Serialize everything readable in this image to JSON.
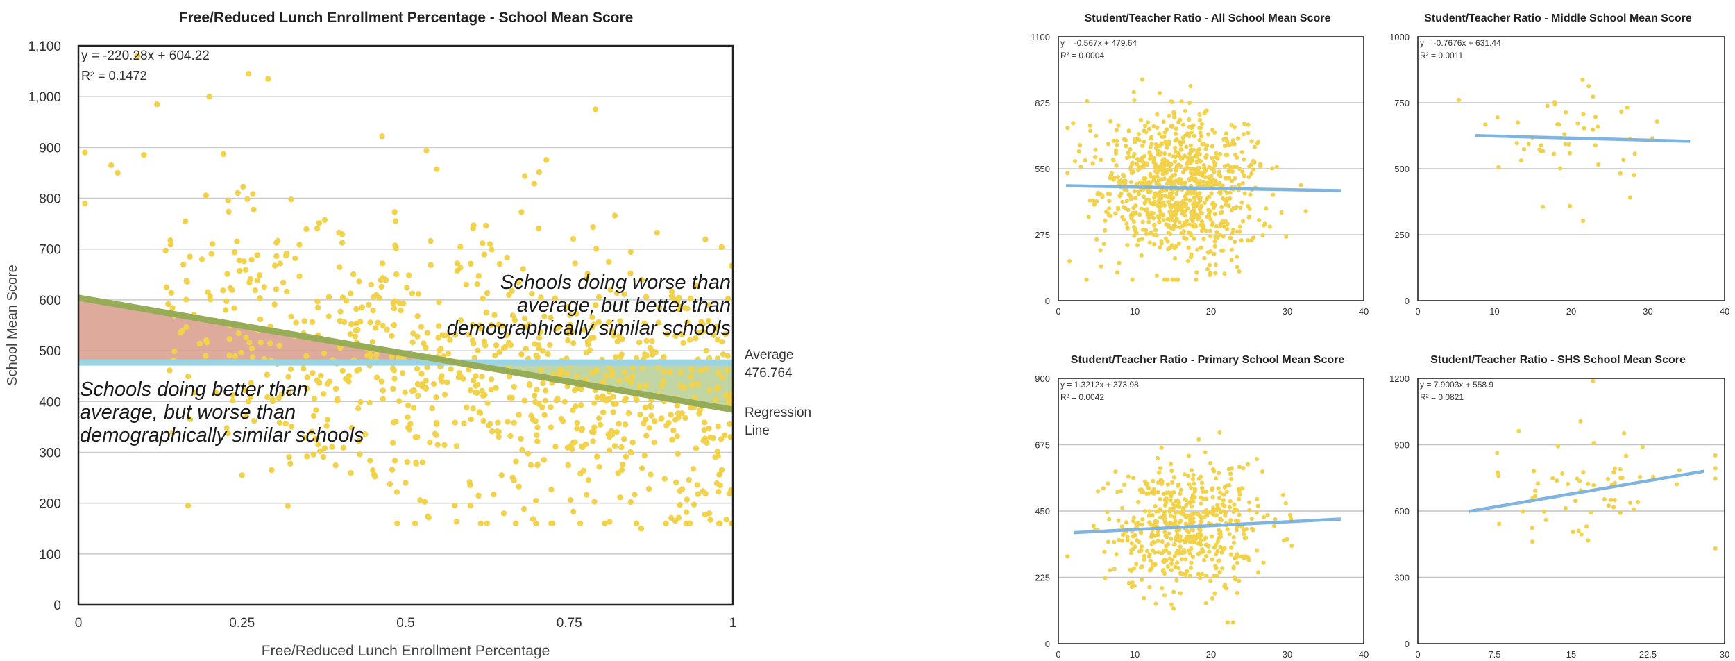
{
  "chart_data": [
    {
      "type": "scatter",
      "title": "Free/Reduced Lunch Enrollment Percentage - School Mean Score",
      "xlabel": "Free/Reduced Lunch Enrollment Percentage",
      "ylabel": "School Mean Score",
      "xlim": [
        0,
        1
      ],
      "ylim": [
        0,
        1100
      ],
      "x_ticks": [
        "0",
        "0.25",
        "0.5",
        "0.75",
        "1"
      ],
      "y_ticks": [
        "0",
        "100",
        "200",
        "300",
        "400",
        "500",
        "600",
        "700",
        "800",
        "900",
        "1,000",
        "1,100"
      ],
      "grid": "horizontal",
      "point_color": "#f2d24a",
      "n_points": 900,
      "equation": "y = -220.28x + 604.22",
      "r2": "R² = 0.1472",
      "regression": {
        "slope": -220.28,
        "intercept": 604.22,
        "color": "#97ac57"
      },
      "average": {
        "value": 476.764,
        "color": "#9cd3e3",
        "label_1": "Average",
        "label_2": "476.764"
      },
      "regression_label_1": "Regression",
      "regression_label_2": "Line",
      "region_above_color": "#d89b8b",
      "region_below_color": "#b7cf94",
      "annotation_upper_1": "Schools doing worse than",
      "annotation_upper_2": "average, but better than",
      "annotation_upper_3": "demographically similar schools",
      "annotation_lower_1": "Schools doing better than",
      "annotation_lower_2": "average, but worse than",
      "annotation_lower_3": "demographically similar schools",
      "sample_points": [
        [
          0.01,
          890
        ],
        [
          0.01,
          790
        ],
        [
          0.05,
          865
        ],
        [
          0.06,
          850
        ],
        [
          0.09,
          1080
        ],
        [
          0.1,
          885
        ],
        [
          0.12,
          985
        ],
        [
          0.2,
          1000
        ],
        [
          0.26,
          1045
        ],
        [
          0.29,
          1035
        ],
        [
          0.79,
          975
        ],
        [
          0.86,
          150
        ],
        [
          0.25,
          255
        ],
        [
          0.65,
          180
        ],
        [
          0.5,
          240
        ]
      ]
    },
    {
      "type": "scatter",
      "title": "Student/Teacher Ratio - All School Mean Score",
      "xlim": [
        0,
        40
      ],
      "ylim": [
        0,
        1100
      ],
      "x_ticks": [
        "0",
        "10",
        "20",
        "30",
        "40"
      ],
      "y_ticks": [
        "0",
        "275",
        "550",
        "825",
        "1100"
      ],
      "equation": "y = -0.567x + 479.64",
      "r2": "R² = 0.0004",
      "regression": {
        "slope": -0.567,
        "intercept": 479.64,
        "x_range": [
          1,
          37
        ],
        "color": "#7fb3e0"
      },
      "n_points": 900,
      "spread": {
        "x_mean": 16,
        "x_sd": 5,
        "y_mean": 470,
        "y_sd": 150
      }
    },
    {
      "type": "scatter",
      "title": "Student/Teacher Ratio - Middle School Mean Score",
      "xlim": [
        0,
        40
      ],
      "ylim": [
        0,
        1000
      ],
      "x_ticks": [
        "0",
        "10",
        "20",
        "30",
        "40"
      ],
      "y_ticks": [
        "0",
        "250",
        "500",
        "750",
        "1000"
      ],
      "equation": "y = -0.7676x + 631.44",
      "r2": "R² = 0.0011",
      "regression": {
        "slope": -0.7676,
        "intercept": 631.44,
        "x_range": [
          7.5,
          35.5
        ],
        "color": "#7fb3e0"
      },
      "n_points": 50,
      "spread": {
        "x_mean": 19,
        "x_sd": 5,
        "y_mean": 610,
        "y_sd": 120
      }
    },
    {
      "type": "scatter",
      "title": "Student/Teacher Ratio - Primary School Mean Score",
      "xlim": [
        0,
        40
      ],
      "ylim": [
        0,
        900
      ],
      "x_ticks": [
        "0",
        "10",
        "20",
        "30",
        "40"
      ],
      "y_ticks": [
        "0",
        "225",
        "450",
        "675",
        "900"
      ],
      "equation": "y = 1.3212x + 373.98",
      "r2": "R² = 0.0042",
      "regression": {
        "slope": 1.3212,
        "intercept": 373.98,
        "x_range": [
          2,
          37
        ],
        "color": "#7fb3e0"
      },
      "n_points": 550,
      "spread": {
        "x_mean": 17,
        "x_sd": 5,
        "y_mean": 395,
        "y_sd": 110
      }
    },
    {
      "type": "scatter",
      "title": "Student/Teacher Ratio - SHS School Mean Score",
      "xlim": [
        0,
        30
      ],
      "ylim": [
        0,
        1200
      ],
      "x_ticks": [
        "0",
        "7.5",
        "15",
        "22.5",
        "30"
      ],
      "y_ticks": [
        "0",
        "300",
        "600",
        "900",
        "1200"
      ],
      "equation": "y = 7.9003x + 558.9",
      "r2": "R² = 0.0821",
      "regression": {
        "slope": 7.9003,
        "intercept": 558.9,
        "x_range": [
          5,
          28
        ],
        "color": "#7fb3e0"
      },
      "n_points": 65,
      "spread": {
        "x_mean": 17,
        "x_sd": 5,
        "y_mean": 690,
        "y_sd": 140
      }
    }
  ]
}
